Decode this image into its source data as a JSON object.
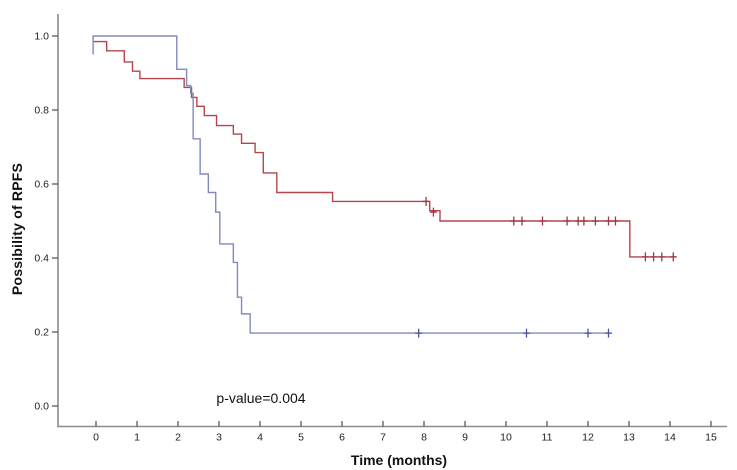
{
  "chart_data": {
    "type": "line",
    "subtype": "kaplan-meier-step-curves",
    "title": "",
    "xlabel": "Time (months)",
    "ylabel": "Possibility of RPFS",
    "annotation": {
      "text": "p-value=0.004",
      "x": 4.0,
      "y": 0.02
    },
    "x_ticks": [
      0,
      1,
      2,
      3,
      4,
      5,
      6,
      7,
      8,
      9,
      10,
      11,
      12,
      13,
      14,
      15
    ],
    "y_ticks": [
      0.0,
      0.2,
      0.4,
      0.6,
      0.8,
      1.0
    ],
    "xlim": [
      -0.9,
      15.4
    ],
    "ylim": [
      0.0,
      1.0
    ],
    "grid": false,
    "legend_position": "none",
    "style": {
      "background": "#ffffff",
      "axis_color": "#8c8c8c",
      "tick_color": "#4d4d4d",
      "tick_label_color": "#1f1f1f",
      "text_color": "#111111"
    },
    "series": [
      {
        "name": "red-group",
        "color": "#b4464b",
        "censor_color": "#9c3842",
        "steps": [
          [
            -0.07,
            0.985
          ],
          [
            0.26,
            0.96
          ],
          [
            0.69,
            0.93
          ],
          [
            0.89,
            0.905
          ],
          [
            1.07,
            0.885
          ],
          [
            2.15,
            0.861
          ],
          [
            2.33,
            0.834
          ],
          [
            2.46,
            0.81
          ],
          [
            2.64,
            0.785
          ],
          [
            2.94,
            0.758
          ],
          [
            3.35,
            0.735
          ],
          [
            3.55,
            0.71
          ],
          [
            3.88,
            0.685
          ],
          [
            4.08,
            0.63
          ],
          [
            4.41,
            0.577
          ],
          [
            5.77,
            0.553
          ],
          [
            8.14,
            0.528
          ],
          [
            8.39,
            0.5
          ],
          [
            13.02,
            0.403
          ]
        ],
        "end_x": 14.15,
        "censors": [
          [
            8.05,
            0.553
          ],
          [
            8.23,
            0.524
          ],
          [
            10.19,
            0.5
          ],
          [
            10.39,
            0.5
          ],
          [
            10.89,
            0.5
          ],
          [
            11.49,
            0.5
          ],
          [
            11.76,
            0.5
          ],
          [
            11.9,
            0.5
          ],
          [
            12.18,
            0.5
          ],
          [
            12.5,
            0.5
          ],
          [
            12.67,
            0.5
          ],
          [
            13.4,
            0.403
          ],
          [
            13.6,
            0.403
          ],
          [
            13.8,
            0.403
          ],
          [
            14.08,
            0.403
          ]
        ]
      },
      {
        "name": "blue-group",
        "color": "#8289bf",
        "censor_color": "#4a549e",
        "start_dip": 0.95,
        "steps": [
          [
            -0.07,
            1.0
          ],
          [
            1.97,
            0.91
          ],
          [
            2.21,
            0.866
          ],
          [
            2.31,
            0.845
          ],
          [
            2.37,
            0.722
          ],
          [
            2.54,
            0.627
          ],
          [
            2.74,
            0.577
          ],
          [
            2.92,
            0.524
          ],
          [
            3.02,
            0.438
          ],
          [
            3.35,
            0.388
          ],
          [
            3.45,
            0.294
          ],
          [
            3.55,
            0.249
          ],
          [
            3.76,
            0.197
          ]
        ],
        "end_x": 12.55,
        "censors": [
          [
            7.87,
            0.197
          ],
          [
            10.5,
            0.197
          ],
          [
            12.0,
            0.197
          ],
          [
            12.5,
            0.197
          ]
        ]
      }
    ]
  }
}
